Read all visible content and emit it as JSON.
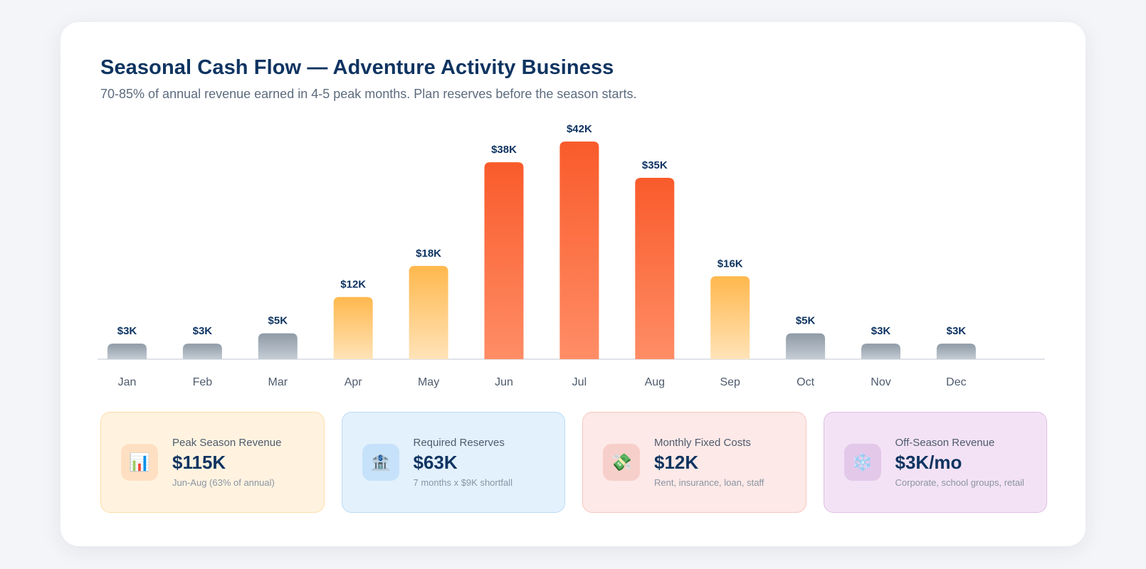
{
  "chart_data": {
    "type": "bar",
    "title": "Seasonal Cash Flow — Adventure Activity Business",
    "subtitle": "70-85% of annual revenue earned in 4-5 peak months. Plan reserves before the season starts.",
    "categories": [
      "Jan",
      "Feb",
      "Mar",
      "Apr",
      "May",
      "Jun",
      "Jul",
      "Aug",
      "Sep",
      "Oct",
      "Nov",
      "Dec"
    ],
    "values": [
      3,
      3,
      5,
      12,
      18,
      38,
      42,
      35,
      16,
      5,
      3,
      3
    ],
    "value_labels": [
      "$3K",
      "$3K",
      "$5K",
      "$12K",
      "$18K",
      "$38K",
      "$42K",
      "$35K",
      "$16K",
      "$5K",
      "$3K",
      "$3K"
    ],
    "unit": "$K",
    "ylim": [
      0,
      42
    ],
    "grid": false,
    "legend": "none",
    "season": [
      "off",
      "off",
      "off",
      "shoulder",
      "shoulder",
      "peak",
      "peak",
      "peak",
      "shoulder",
      "off",
      "off",
      "off"
    ],
    "colors": {
      "off": [
        "#8e9aa6",
        "#c4ccd4"
      ],
      "shoulder": [
        "#ffb84d",
        "#ffe3b8"
      ],
      "peak": [
        "#f95b2b",
        "#ff8d66"
      ]
    }
  },
  "stats": [
    {
      "icon": "bar-chart-icon",
      "glyph": "📊",
      "label": "Peak Season Revenue",
      "value": "$115K",
      "note": "Jun-Aug (63% of annual)"
    },
    {
      "icon": "bank-icon",
      "glyph": "🏦",
      "label": "Required Reserves",
      "value": "$63K",
      "note": "7 months x $9K shortfall"
    },
    {
      "icon": "money-wings-icon",
      "glyph": "💸",
      "label": "Monthly Fixed Costs",
      "value": "$12K",
      "note": "Rent, insurance, loan, staff"
    },
    {
      "icon": "snowflake-icon",
      "glyph": "❄️",
      "label": "Off-Season Revenue",
      "value": "$3K/mo",
      "note": "Corporate, school groups, retail"
    }
  ]
}
